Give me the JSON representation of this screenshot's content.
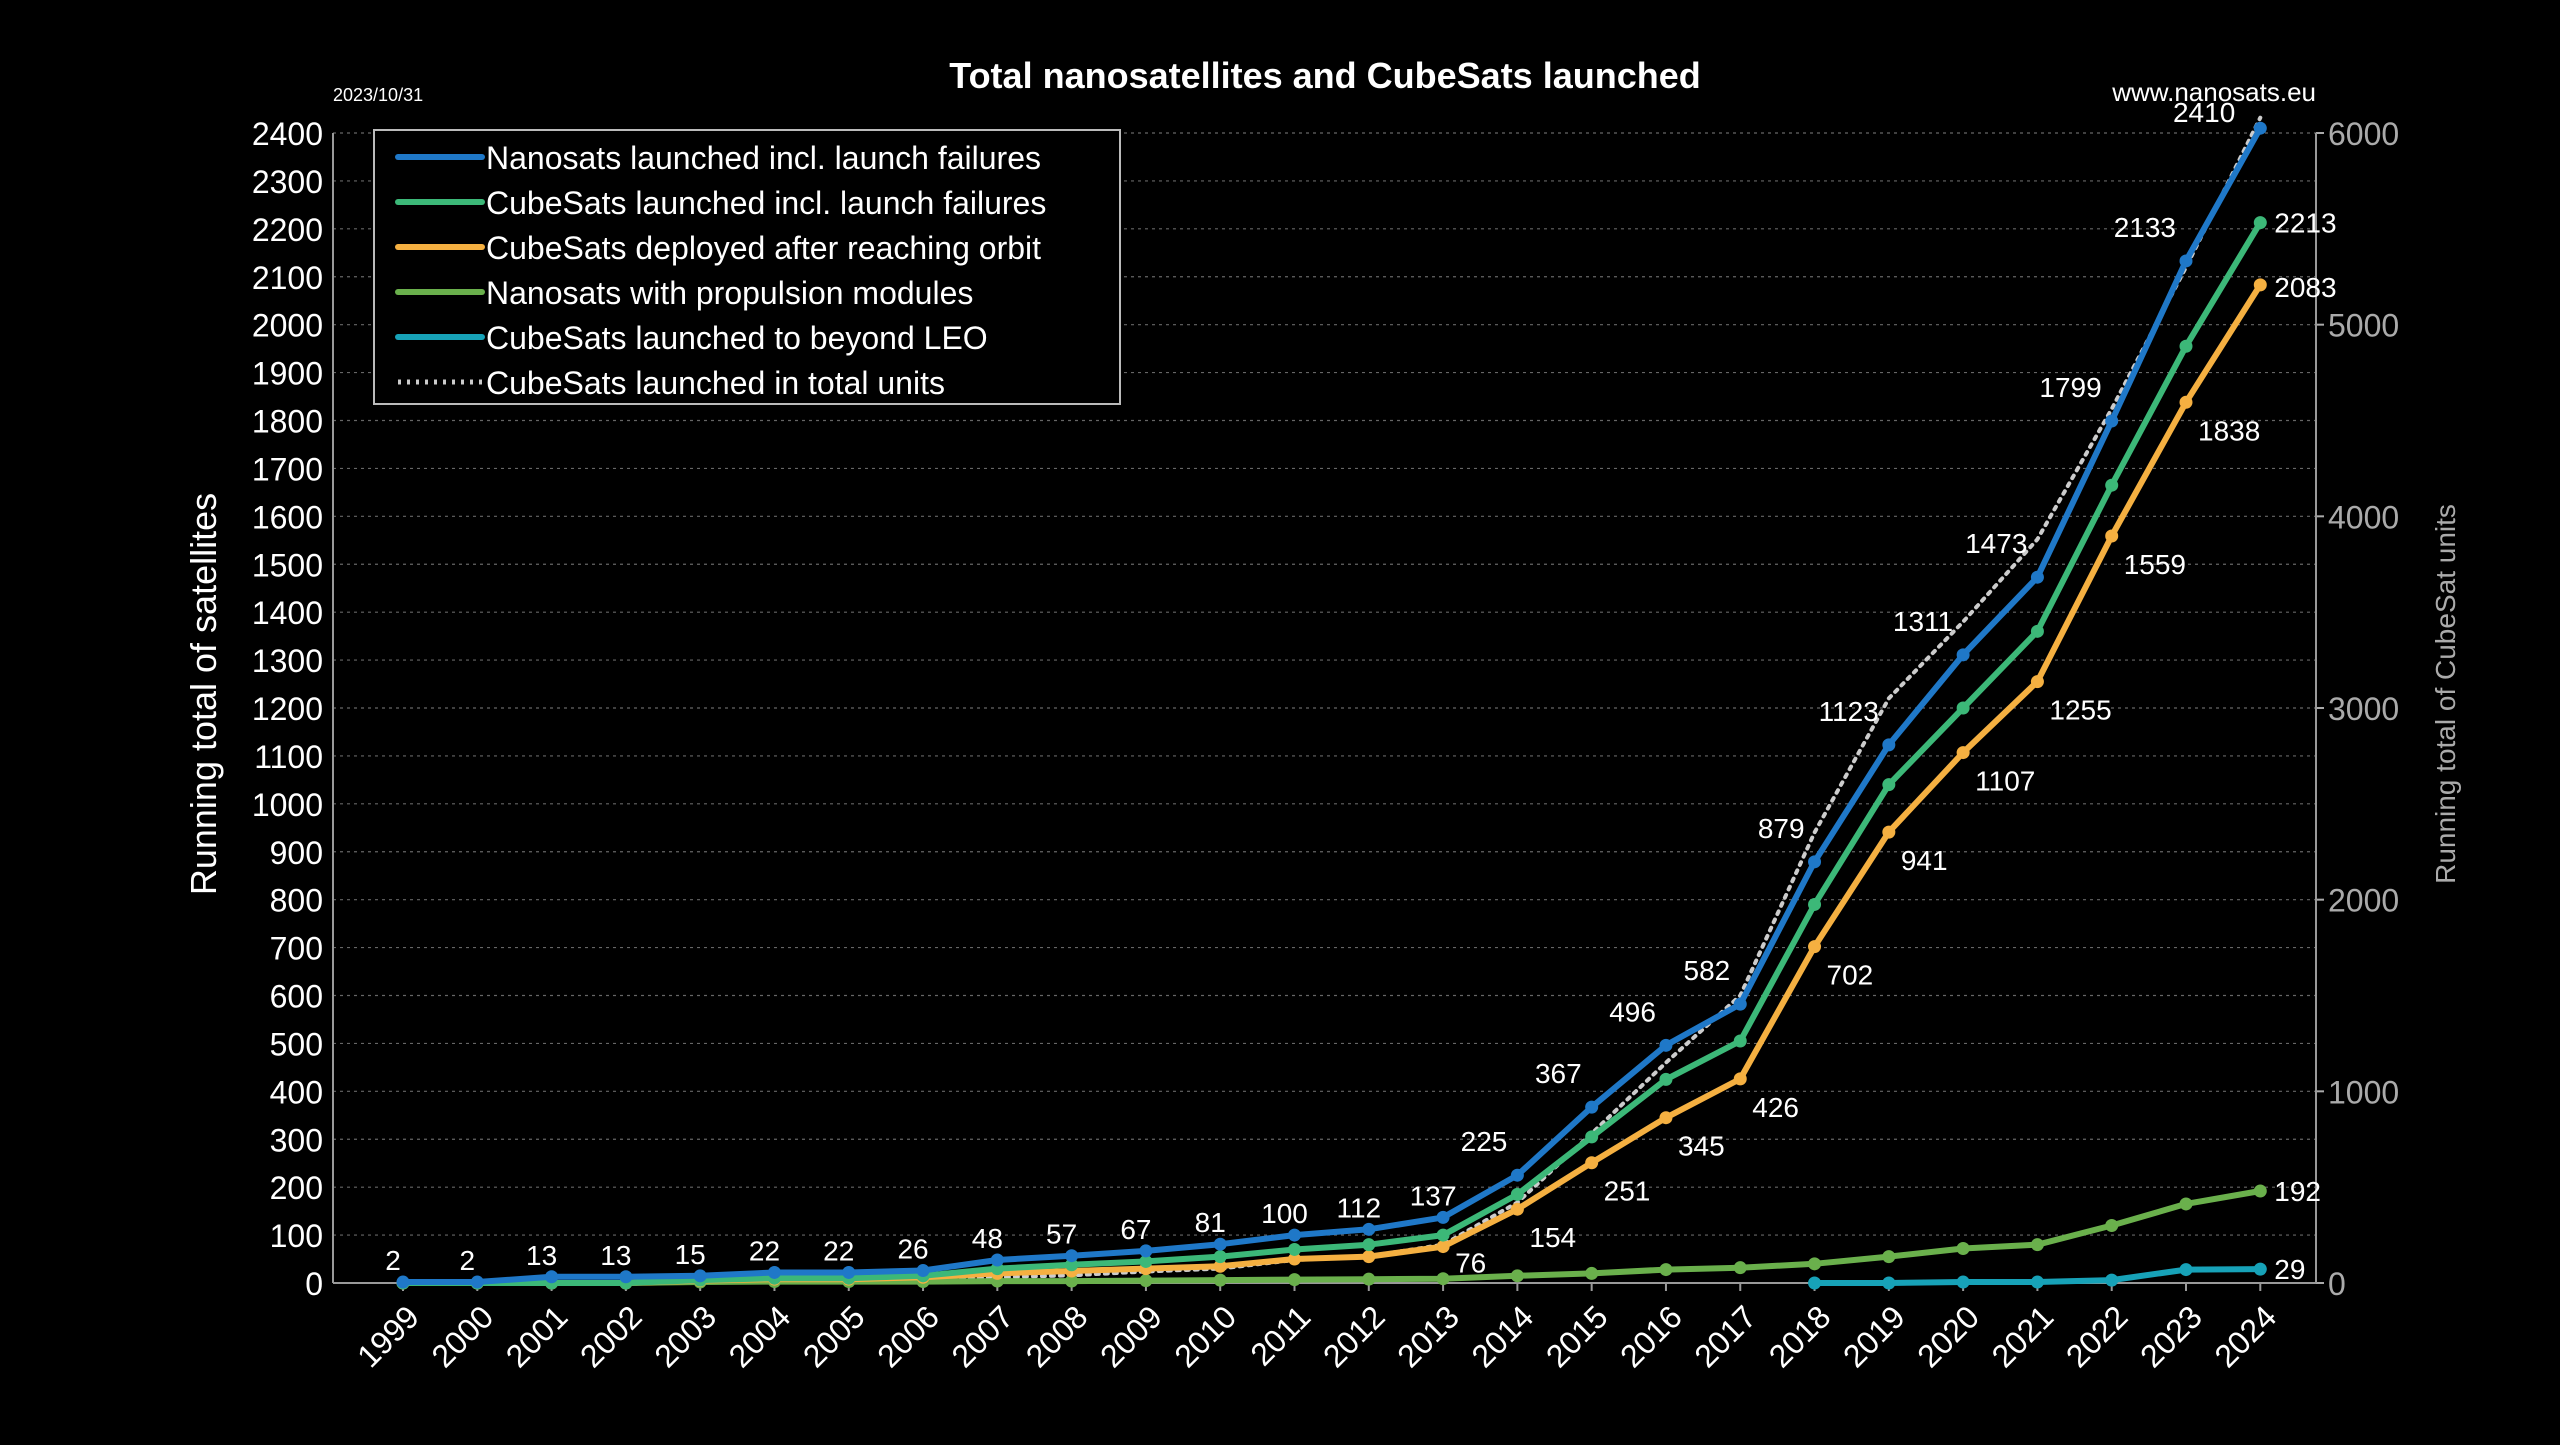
{
  "chart_data": {
    "type": "line",
    "title": "Total nanosatellites and CubeSats launched",
    "date_label": "2023/10/31",
    "source": "www.nanosats.eu",
    "ylabel": "Running total of satellites",
    "y2label": "Running total of CubeSat units",
    "ylim": [
      0,
      2400
    ],
    "y2lim": [
      0,
      6000
    ],
    "y_ticks": [
      0,
      100,
      200,
      300,
      400,
      500,
      600,
      700,
      800,
      900,
      1000,
      1100,
      1200,
      1300,
      1400,
      1500,
      1600,
      1700,
      1800,
      1900,
      2000,
      2100,
      2200,
      2300,
      2400
    ],
    "y2_ticks": [
      0,
      1000,
      2000,
      3000,
      4000,
      5000,
      6000
    ],
    "grid": true,
    "legend_position": "top-left",
    "x": [
      "1999",
      "2000",
      "2001",
      "2002",
      "2003",
      "2004",
      "2005",
      "2006",
      "2007",
      "2008",
      "2009",
      "2010",
      "2011",
      "2012",
      "2013",
      "2014",
      "2015",
      "2016",
      "2017",
      "2018",
      "2019",
      "2020",
      "2021",
      "2022",
      "2023",
      "2024"
    ],
    "series": [
      {
        "name": "Nanosats launched incl. launch failures",
        "color": "#1f78c8",
        "axis": "left",
        "values": [
          2,
          2,
          13,
          13,
          15,
          22,
          22,
          26,
          48,
          57,
          67,
          81,
          100,
          112,
          137,
          225,
          367,
          496,
          582,
          879,
          1123,
          1311,
          1473,
          1799,
          2133,
          2410
        ],
        "labels": [
          "2",
          "2",
          "13",
          "13",
          "15",
          "22",
          "22",
          "26",
          "48",
          "57",
          "67",
          "81",
          "100",
          "112",
          "137",
          "225",
          "367",
          "496",
          "582",
          "879",
          "1123",
          "1311",
          "1473",
          "1799",
          "2133",
          "2410"
        ]
      },
      {
        "name": "CubeSats launched incl. launch failures",
        "color": "#3cb878",
        "axis": "left",
        "values": [
          0,
          0,
          0,
          0,
          6,
          10,
          10,
          15,
          30,
          38,
          45,
          55,
          70,
          80,
          100,
          185,
          305,
          425,
          505,
          790,
          1040,
          1200,
          1360,
          1665,
          1955,
          2213
        ],
        "labels": [
          "",
          "",
          "",
          "",
          "",
          "",
          "",
          "",
          "",
          "",
          "",
          "",
          "",
          "",
          "",
          "",
          "",
          "",
          "",
          "",
          "",
          "",
          "",
          "",
          "",
          "2213"
        ]
      },
      {
        "name": "CubeSats deployed after reaching orbit",
        "color": "#f5b041",
        "axis": "left",
        "values": [
          0,
          0,
          0,
          0,
          5,
          8,
          8,
          12,
          20,
          25,
          30,
          35,
          50,
          55,
          76,
          154,
          251,
          345,
          426,
          702,
          941,
          1107,
          1255,
          1559,
          1838,
          2083
        ],
        "labels": [
          "",
          "",
          "",
          "",
          "",
          "",
          "",
          "",
          "",
          "",
          "",
          "",
          "",
          "",
          "76",
          "154",
          "251",
          "345",
          "426",
          "702",
          "941",
          "1107",
          "1255",
          "1559",
          "1838",
          "2083"
        ]
      },
      {
        "name": "Nanosats with propulsion modules",
        "color": "#6ab04c",
        "axis": "left",
        "values": [
          0,
          0,
          0,
          0,
          2,
          3,
          3,
          3,
          4,
          4,
          5,
          6,
          7,
          8,
          9,
          15,
          20,
          28,
          32,
          40,
          55,
          72,
          80,
          120,
          165,
          192
        ],
        "labels": [
          "",
          "",
          "",
          "",
          "",
          "",
          "",
          "",
          "",
          "",
          "",
          "",
          "",
          "",
          "",
          "",
          "",
          "",
          "",
          "",
          "",
          "",
          "",
          "",
          "",
          "192"
        ]
      },
      {
        "name": "CubeSats launched to beyond LEO",
        "color": "#17a2b8",
        "axis": "left",
        "values": [
          null,
          null,
          null,
          null,
          null,
          null,
          null,
          null,
          null,
          null,
          null,
          null,
          null,
          null,
          null,
          null,
          null,
          null,
          null,
          0,
          0,
          2,
          2,
          6,
          28,
          29
        ],
        "labels": [
          "",
          "",
          "",
          "",
          "",
          "",
          "",
          "",
          "",
          "",
          "",
          "",
          "",
          "",
          "",
          "",
          "",
          "",
          "",
          "",
          "",
          "",
          "",
          "",
          "",
          "29"
        ]
      },
      {
        "name": "CubeSats launched in total units",
        "color": "#cccccc",
        "axis": "right",
        "dashed": true,
        "values": [
          0,
          0,
          0,
          0,
          3,
          5,
          8,
          15,
          30,
          40,
          60,
          75,
          120,
          140,
          200,
          420,
          780,
          1150,
          1500,
          2350,
          3050,
          3450,
          3880,
          4560,
          5300,
          6080
        ],
        "labels": []
      }
    ]
  }
}
